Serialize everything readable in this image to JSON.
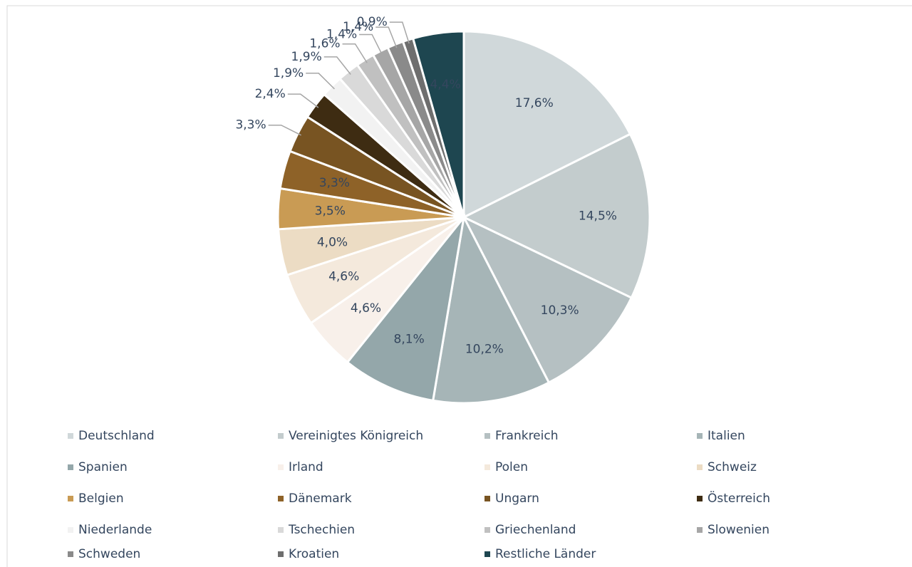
{
  "chart_data": {
    "type": "pie",
    "categories": [
      "Deutschland",
      "Vereinigtes Königreich",
      "Frankreich",
      "Italien",
      "Spanien",
      "Irland",
      "Polen",
      "Schweiz",
      "Belgien",
      "Dänemark",
      "Ungarn",
      "Österreich",
      "Niederlande",
      "Tschechien",
      "Griechenland",
      "Slowenien",
      "Schweden",
      "Kroatien",
      "Restliche Länder"
    ],
    "values": [
      17.6,
      14.5,
      10.3,
      10.2,
      8.1,
      4.6,
      4.6,
      4.0,
      3.5,
      3.3,
      3.3,
      2.4,
      1.9,
      1.9,
      1.6,
      1.4,
      1.4,
      0.9,
      4.4
    ],
    "value_labels": [
      "17,6%",
      "14,5%",
      "10,3%",
      "10,2%",
      "8,1%",
      "4,6%",
      "4,6%",
      "4,0%",
      "3,5%",
      "3,3%",
      "3,3%",
      "2,4%",
      "1,9%",
      "1,9%",
      "1,6%",
      "1,4%",
      "1,4%",
      "0,9%",
      "4,4%"
    ],
    "colors": [
      "#d0d8da",
      "#c3cccd",
      "#b5c0c2",
      "#a6b5b7",
      "#94a7aa",
      "#f8f0ea",
      "#f4e9dc",
      "#ecdcc4",
      "#c99b54",
      "#8e6228",
      "#785422",
      "#3e2c12",
      "#f2f2f2",
      "#d9d9d9",
      "#c0c0c0",
      "#a6a6a6",
      "#8a8a8a",
      "#6e6e6e",
      "#1e4650"
    ],
    "legend": "bottom"
  }
}
